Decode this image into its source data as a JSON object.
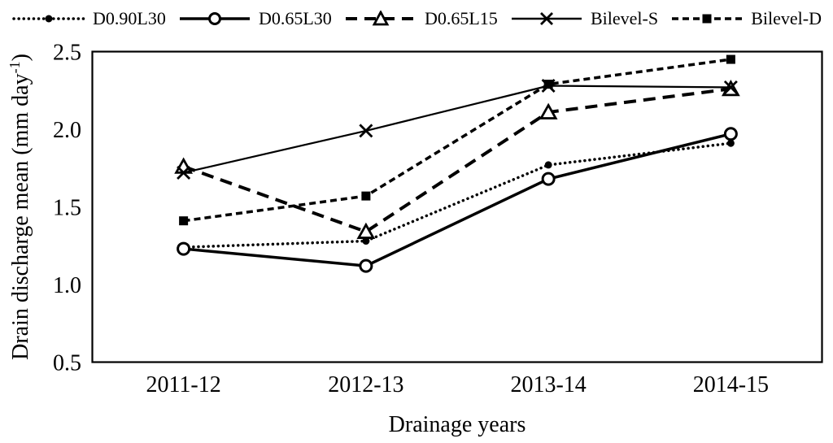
{
  "colors": {
    "foreground": "#000000",
    "background": "#ffffff"
  },
  "chart_data": {
    "type": "line",
    "title": "",
    "xlabel": "Drainage years",
    "ylabel": "Drain discharge mean (mm day⁻¹)",
    "ylabel_parts": {
      "prefix": "Drain discharge mean (mm day",
      "superscript": "-1",
      "suffix": ")"
    },
    "categories": [
      "2011-12",
      "2012-13",
      "2013-14",
      "2014-15"
    ],
    "ylim": [
      0.5,
      2.5
    ],
    "yticks": [
      "0.5",
      "1.0",
      "1.5",
      "2.0",
      "2.5"
    ],
    "grid": false,
    "legend_position": "top",
    "series": [
      {
        "name": "D0.90L30",
        "marker": "filled-circle",
        "line": "dotted",
        "values": [
          1.24,
          1.28,
          1.77,
          1.91
        ]
      },
      {
        "name": "D0.65L30",
        "marker": "open-circle",
        "line": "solid",
        "values": [
          1.23,
          1.12,
          1.68,
          1.97
        ]
      },
      {
        "name": "D0.65L15",
        "marker": "open-triangle",
        "line": "dashed",
        "values": [
          1.76,
          1.34,
          2.11,
          2.26
        ]
      },
      {
        "name": "Bilevel-S",
        "marker": "x",
        "line": "solid",
        "values": [
          1.72,
          1.99,
          2.28,
          2.27
        ]
      },
      {
        "name": "Bilevel-D",
        "marker": "filled-square",
        "line": "dashed-short",
        "values": [
          1.41,
          1.57,
          2.29,
          2.45
        ]
      }
    ]
  }
}
